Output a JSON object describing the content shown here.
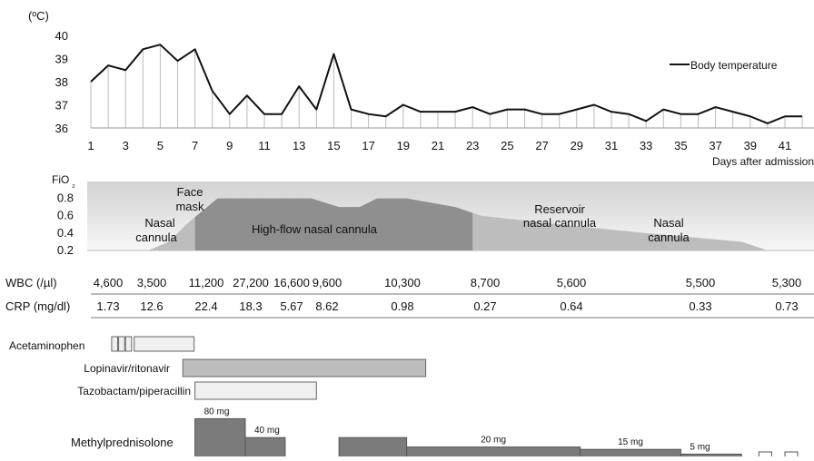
{
  "chart_data": [
    {
      "type": "line",
      "ylabel": "(ºC)",
      "xlabel": "Days after admission",
      "ylim": [
        36,
        40
      ],
      "yticks": [
        36,
        37,
        38,
        39,
        40
      ],
      "xticks": [
        1,
        3,
        5,
        7,
        9,
        11,
        13,
        15,
        17,
        19,
        21,
        23,
        25,
        27,
        29,
        31,
        33,
        35,
        37,
        39,
        41
      ],
      "xlim": [
        1,
        42
      ],
      "grid": false,
      "legend_position": "top-right",
      "series": [
        {
          "name": "Body temperature",
          "x": [
            1,
            2,
            3,
            4,
            5,
            6,
            7,
            8,
            9,
            10,
            11,
            12,
            13,
            14,
            15,
            16,
            17,
            18,
            19,
            20,
            21,
            22,
            23,
            24,
            25,
            26,
            27,
            28,
            29,
            30,
            31,
            32,
            33,
            34,
            35,
            36,
            37,
            38,
            39,
            40,
            41,
            42
          ],
          "values": [
            38.0,
            38.7,
            38.5,
            39.4,
            39.6,
            38.9,
            39.4,
            37.6,
            36.6,
            37.4,
            36.6,
            36.6,
            37.8,
            36.8,
            39.2,
            36.8,
            36.6,
            36.5,
            37.0,
            36.7,
            36.7,
            36.7,
            36.9,
            36.6,
            36.8,
            36.8,
            36.6,
            36.6,
            36.8,
            37.0,
            36.7,
            36.6,
            36.3,
            36.8,
            36.6,
            36.6,
            36.9,
            36.7,
            36.5,
            36.2,
            36.5,
            36.5
          ]
        }
      ]
    },
    {
      "type": "area",
      "ylabel": "FiO₂",
      "ylim": [
        0.2,
        0.9
      ],
      "yticks": [
        0.2,
        0.4,
        0.6,
        0.8
      ],
      "series": [
        {
          "name": "FiO2",
          "x": [
            4.3,
            5.5,
            6.5,
            8.3,
            9.5,
            13.7,
            15.3,
            16.5,
            17.5,
            19.2,
            22,
            23.5,
            28,
            33,
            38.5,
            40,
            42
          ],
          "values": [
            0.2,
            0.3,
            0.5,
            0.8,
            0.8,
            0.8,
            0.7,
            0.7,
            0.8,
            0.8,
            0.7,
            0.6,
            0.5,
            0.4,
            0.3,
            0.2,
            0.2
          ]
        }
      ],
      "phases": [
        {
          "label": "Nasal cannula",
          "start": 4.3,
          "end": 6.0
        },
        {
          "label": "Face mask",
          "start": 6.0,
          "end": 7.0
        },
        {
          "label": "High-flow nasal cannula",
          "start": 7.0,
          "end": 23.0
        },
        {
          "label": "Reservoir nasal cannula",
          "start": 23.0,
          "end": 35.0
        },
        {
          "label": "Nasal cannula",
          "start": 35.0,
          "end": 40.0
        }
      ]
    },
    {
      "type": "table",
      "rows": [
        {
          "label": "WBC (/µl)",
          "values": [
            "4,600",
            "3,500",
            "11,200",
            "27,200",
            "16,600",
            "9,600",
            "10,300",
            "8,700",
            "5,600",
            "5,500",
            "5,300"
          ]
        },
        {
          "label": "CRP (mg/dl)",
          "values": [
            "1.73",
            "12.6",
            "22.4",
            "18.3",
            "5.67",
            "8.62",
            "0.98",
            "0.27",
            "0.64",
            "0.33",
            "0.73"
          ]
        }
      ]
    },
    {
      "type": "bar",
      "subtype": "gantt",
      "tasks": [
        {
          "name": "Acetaminophen",
          "segments": [
            [
              2.2,
              2.6
            ],
            [
              2.6,
              3.0
            ],
            [
              3.0,
              3.4
            ],
            [
              3.5,
              7.0
            ]
          ]
        },
        {
          "name": "Lopinavir/ritonavir",
          "segments": [
            [
              6.3,
              20.3
            ]
          ]
        },
        {
          "name": "Tazobactam/piperacillin",
          "segments": [
            [
              7.0,
              14.0
            ]
          ]
        },
        {
          "name": "Methylprednisolone",
          "doses": [
            {
              "label": "80 mg",
              "start": 7.0,
              "end": 9.9,
              "level": 0.8
            },
            {
              "label": "40 mg",
              "start": 9.9,
              "end": 12.2,
              "level": 0.4
            },
            {
              "label": "",
              "start": 15.3,
              "end": 19.2,
              "level": 0.4
            },
            {
              "label": "20 mg",
              "start": 19.2,
              "end": 29.2,
              "level": 0.2
            },
            {
              "label": "15 mg",
              "start": 29.2,
              "end": 35.0,
              "level": 0.15
            },
            {
              "label": "5 mg",
              "start": 35.0,
              "end": 38.5,
              "level": 0.05
            }
          ]
        }
      ]
    }
  ]
}
